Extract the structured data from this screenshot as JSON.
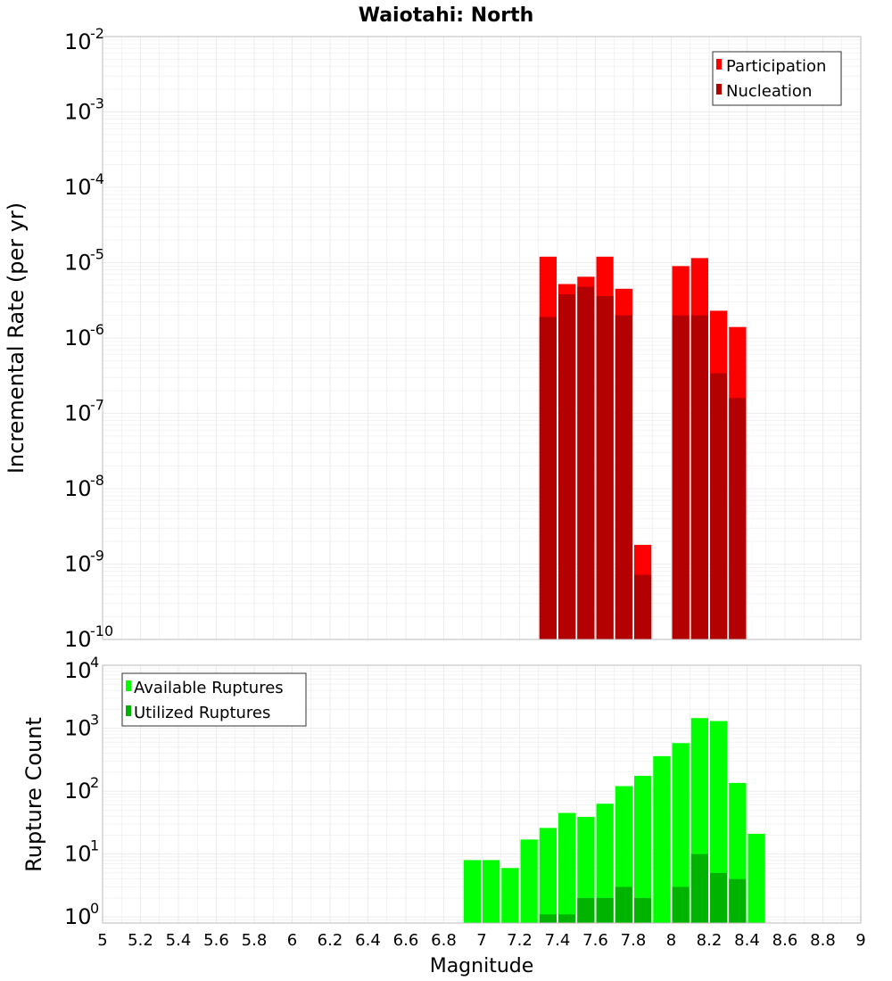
{
  "title": "Waiotahi: North",
  "xlabel": "Magnitude",
  "x_ticks": [
    "5",
    "5.2",
    "5.4",
    "5.6",
    "5.8",
    "6",
    "6.2",
    "6.4",
    "6.6",
    "6.8",
    "7",
    "7.2",
    "7.4",
    "7.6",
    "7.8",
    "8",
    "8.2",
    "8.4",
    "8.6",
    "8.8",
    "9"
  ],
  "colors": {
    "participation": "#ff0000",
    "nucleation": "#b30000",
    "available": "#00ff00",
    "utilized": "#00b300",
    "grid": "#ececec",
    "frame": "#bbbbbb"
  },
  "chart_data": [
    {
      "type": "bar",
      "ylabel": "Incremental Rate (per yr)",
      "yscale": "log",
      "ylim": [
        1e-10,
        0.01
      ],
      "xlim": [
        5,
        9
      ],
      "bin_width": 0.1,
      "y_ticks": [
        {
          "base": "10",
          "exp": "-10"
        },
        {
          "base": "10",
          "exp": "-9"
        },
        {
          "base": "10",
          "exp": "-8"
        },
        {
          "base": "10",
          "exp": "-7"
        },
        {
          "base": "10",
          "exp": "-6"
        },
        {
          "base": "10",
          "exp": "-5"
        },
        {
          "base": "10",
          "exp": "-4"
        },
        {
          "base": "10",
          "exp": "-3"
        },
        {
          "base": "10",
          "exp": "-2"
        }
      ],
      "legend": {
        "position": "top-right",
        "items": [
          "Participation",
          "Nucleation"
        ]
      },
      "grid": true,
      "x": [
        7.35,
        7.45,
        7.55,
        7.65,
        7.75,
        7.85,
        8.05,
        8.15,
        8.25,
        8.35
      ],
      "series": [
        {
          "name": "Participation",
          "values": [
            1.2e-05,
            5.2e-06,
            6.5e-06,
            1.2e-05,
            4.5e-06,
            1.8e-09,
            9e-06,
            1.15e-05,
            2.3e-06,
            1.4e-06
          ]
        },
        {
          "name": "Nucleation",
          "values": [
            1.9e-06,
            3.8e-06,
            4.8e-06,
            3.6e-06,
            2e-06,
            7.2e-10,
            2e-06,
            2e-06,
            3.4e-07,
            1.6e-07
          ]
        }
      ]
    },
    {
      "type": "bar",
      "ylabel": "Rupture Count",
      "yscale": "log",
      "ylim": [
        0.8,
        10000
      ],
      "xlim": [
        5,
        9
      ],
      "bin_width": 0.1,
      "y_ticks": [
        {
          "base": "10",
          "exp": "0"
        },
        {
          "base": "10",
          "exp": "1"
        },
        {
          "base": "10",
          "exp": "2"
        },
        {
          "base": "10",
          "exp": "3"
        },
        {
          "base": "10",
          "exp": "4"
        }
      ],
      "legend": {
        "position": "top-left",
        "items": [
          "Available Ruptures",
          "Utilized Ruptures"
        ]
      },
      "grid": true,
      "x": [
        6.95,
        7.05,
        7.15,
        7.25,
        7.35,
        7.45,
        7.55,
        7.65,
        7.75,
        7.85,
        7.95,
        8.05,
        8.15,
        8.25,
        8.35,
        8.45
      ],
      "series": [
        {
          "name": "Available Ruptures",
          "values": [
            8,
            8,
            6,
            17,
            26,
            45,
            39,
            63,
            120,
            175,
            360,
            580,
            1450,
            1300,
            135,
            21
          ]
        },
        {
          "name": "Utilized Ruptures",
          "values": [
            0,
            0,
            0,
            0,
            1.1,
            1.1,
            2,
            2,
            3,
            2,
            0,
            3,
            10,
            5,
            4,
            0
          ]
        }
      ]
    }
  ]
}
